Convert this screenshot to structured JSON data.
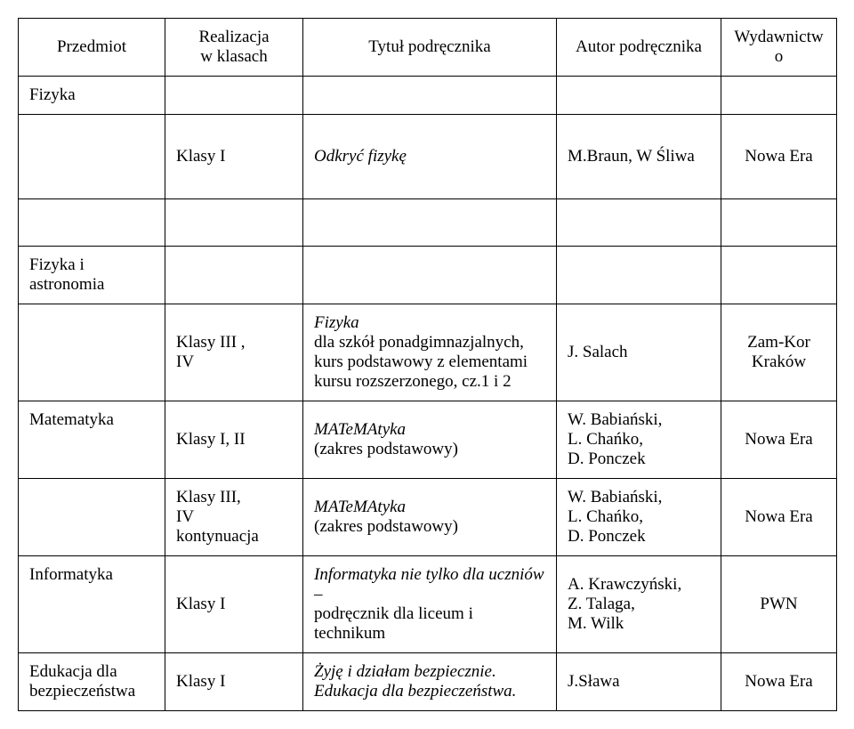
{
  "header": {
    "subject": "Przedmiot",
    "classes_line1": "Realizacja",
    "classes_line2": "w klasach",
    "title": "Tytuł podręcznika",
    "author": "Autor podręcznika",
    "publisher": "Wydawnictwo"
  },
  "rows": {
    "r1": {
      "subject": "Fizyka"
    },
    "r2": {
      "classes": "Klasy I",
      "title": "Odkryć fizykę",
      "author": "M.Braun, W Śliwa",
      "publisher": "Nowa Era"
    },
    "r3": {
      "subject": "Fizyka i astronomia"
    },
    "r4": {
      "classes_l1": "Klasy III ,",
      "classes_l2": "IV",
      "title_l1": "Fizyka",
      "title_l2": "dla szkół ponadgimnazjalnych,",
      "title_l3": "kurs podstawowy z elementami",
      "title_l4": "kursu rozszerzonego, cz.1 i 2",
      "author": "J. Salach",
      "publisher_l1": "Zam-Kor",
      "publisher_l2": "Kraków"
    },
    "r5": {
      "subject": "Matematyka",
      "classes": "Klasy I, II",
      "title_l1": "MATeMAtyka",
      "title_l2": "(zakres podstawowy)",
      "author_l1": "W. Babiański,",
      "author_l2": "L. Chańko,",
      "author_l3": "D. Ponczek",
      "publisher": "Nowa Era"
    },
    "r6": {
      "classes_l1": "Klasy III,",
      "classes_l2": "IV",
      "classes_l3": "kontynuacja",
      "title_l1": "MATeMAtyka",
      "title_l2": "(zakres podstawowy)",
      "author_l1": "W. Babiański,",
      "author_l2": "L. Chańko,",
      "author_l3": "D. Ponczek",
      "publisher": "Nowa Era"
    },
    "r7": {
      "subject": "Informatyka",
      "classes": "Klasy I",
      "title_l1": "Informatyka nie tylko dla uczniów",
      "title_l2": "–",
      "title_l3": "podręcznik dla liceum i technikum",
      "author_l1": "A.  Krawczyński,",
      "author_l2": "Z. Talaga,",
      "author_l3": "M. Wilk",
      "publisher": "PWN"
    },
    "r8": {
      "subject_l1": "Edukacja dla",
      "subject_l2": "bezpieczeństwa",
      "classes": "Klasy I",
      "title_l1": "Żyję i działam bezpiecznie.",
      "title_l2": "Edukacja dla bezpieczeństwa.",
      "author": "J.Sława",
      "publisher": "Nowa Era"
    }
  }
}
